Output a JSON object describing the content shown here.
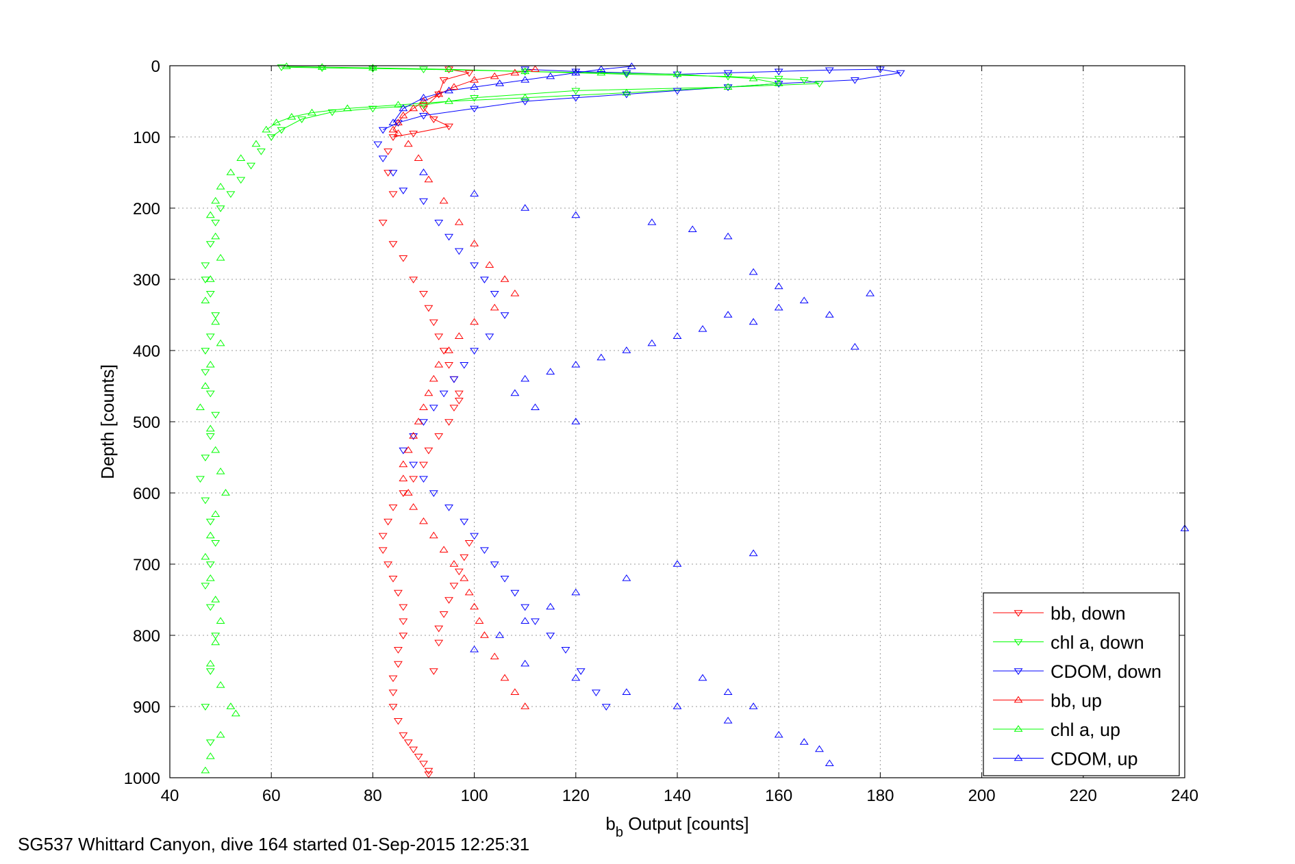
{
  "caption": "SG537 Whittard Canyon, dive 164 started 01-Sep-2015 12:25:31",
  "chart_data": {
    "type": "scatter",
    "xlabel_main": "b",
    "xlabel_sub": "b",
    "xlabel_rest": " Output [counts]",
    "ylabel": "Depth [counts]",
    "xlim": [
      40,
      240
    ],
    "ylim": [
      0,
      1000
    ],
    "y_reversed": true,
    "grid": true,
    "legend_position": "bottom-right",
    "xticks": [
      "40",
      "60",
      "80",
      "100",
      "120",
      "140",
      "160",
      "180",
      "200",
      "220",
      "240"
    ],
    "yticks": [
      "0",
      "100",
      "200",
      "300",
      "400",
      "500",
      "600",
      "700",
      "800",
      "900",
      "1000"
    ],
    "series": [
      {
        "name": "bb, down",
        "color": "#ff0000",
        "marker": "down",
        "x": [
          95,
          99,
          94,
          93,
          90,
          92,
          95,
          88,
          84,
          83,
          83,
          84,
          82,
          84,
          86,
          88,
          90,
          91,
          92,
          93,
          94,
          95,
          96,
          97,
          97,
          96,
          95,
          93,
          91,
          90,
          88,
          86,
          84,
          83,
          82,
          82,
          83,
          84,
          85,
          86,
          86,
          86,
          85,
          85,
          84,
          84,
          84,
          85,
          86,
          87,
          88,
          89,
          90,
          91,
          91,
          92,
          93,
          93,
          94,
          95,
          96,
          97,
          98,
          99
        ],
        "y": [
          5,
          10,
          20,
          40,
          60,
          75,
          85,
          95,
          100,
          120,
          150,
          180,
          220,
          250,
          270,
          300,
          320,
          340,
          360,
          380,
          400,
          420,
          440,
          460,
          470,
          480,
          500,
          520,
          540,
          560,
          580,
          600,
          620,
          640,
          660,
          680,
          700,
          720,
          740,
          760,
          780,
          800,
          820,
          840,
          860,
          880,
          900,
          920,
          940,
          950,
          960,
          970,
          980,
          990,
          995,
          850,
          810,
          790,
          770,
          750,
          730,
          710,
          690,
          670
        ]
      },
      {
        "name": "chl a, down",
        "color": "#00ff00",
        "marker": "down",
        "x": [
          62,
          70,
          80,
          90,
          110,
          130,
          150,
          160,
          165,
          168,
          150,
          120,
          100,
          90,
          80,
          72,
          66,
          62,
          60,
          58,
          56,
          54,
          52,
          50,
          49,
          48,
          47,
          47,
          48,
          49,
          48,
          47,
          47,
          48,
          49,
          48,
          47,
          46,
          47,
          48,
          49,
          48,
          47,
          48,
          49,
          48,
          47,
          48
        ],
        "y": [
          2,
          3,
          4,
          5,
          8,
          12,
          15,
          18,
          20,
          25,
          30,
          35,
          45,
          55,
          60,
          65,
          75,
          90,
          100,
          120,
          140,
          160,
          180,
          200,
          220,
          250,
          280,
          300,
          320,
          350,
          380,
          400,
          430,
          460,
          490,
          520,
          550,
          580,
          610,
          640,
          670,
          700,
          730,
          760,
          800,
          850,
          900,
          950
        ]
      },
      {
        "name": "CDOM, down",
        "color": "#0000ff",
        "marker": "down",
        "x": [
          110,
          120,
          130,
          140,
          150,
          160,
          170,
          180,
          184,
          175,
          160,
          150,
          140,
          130,
          120,
          110,
          100,
          90,
          85,
          82,
          81,
          82,
          84,
          86,
          90,
          93,
          95,
          97,
          100,
          102,
          104,
          106,
          103,
          100,
          98,
          96,
          94,
          92,
          90,
          88,
          86,
          88,
          90,
          92,
          95,
          98,
          100,
          102,
          104,
          106,
          108,
          110,
          112,
          115,
          118,
          121,
          124,
          126
        ],
        "y": [
          5,
          8,
          10,
          12,
          10,
          8,
          6,
          5,
          10,
          20,
          25,
          30,
          35,
          40,
          45,
          50,
          60,
          70,
          80,
          90,
          110,
          130,
          150,
          175,
          190,
          220,
          240,
          260,
          280,
          300,
          320,
          350,
          380,
          400,
          420,
          440,
          460,
          480,
          500,
          520,
          540,
          560,
          580,
          600,
          620,
          640,
          660,
          680,
          700,
          720,
          740,
          760,
          780,
          800,
          820,
          850,
          880,
          900
        ]
      },
      {
        "name": "bb, up",
        "color": "#ff0000",
        "marker": "up",
        "x": [
          112,
          108,
          104,
          100,
          96,
          93,
          90,
          88,
          86,
          85,
          84,
          85,
          87,
          89,
          91,
          94,
          97,
          100,
          103,
          106,
          108,
          104,
          100,
          97,
          95,
          93,
          92,
          91,
          90,
          89,
          88,
          87,
          86,
          86,
          87,
          88,
          90,
          92,
          94,
          96,
          98,
          99,
          100,
          101,
          102,
          104,
          106,
          108,
          110
        ],
        "y": [
          5,
          10,
          15,
          20,
          30,
          40,
          50,
          60,
          70,
          80,
          90,
          95,
          110,
          130,
          160,
          190,
          220,
          250,
          280,
          300,
          320,
          340,
          360,
          380,
          400,
          420,
          440,
          460,
          480,
          500,
          520,
          540,
          560,
          580,
          600,
          620,
          640,
          660,
          680,
          700,
          720,
          740,
          760,
          780,
          800,
          830,
          860,
          880,
          900
        ]
      },
      {
        "name": "chl a, up",
        "color": "#00ff00",
        "marker": "up",
        "x": [
          63,
          70,
          80,
          95,
          110,
          125,
          140,
          155,
          160,
          150,
          130,
          110,
          95,
          85,
          75,
          68,
          64,
          61,
          59,
          57,
          54,
          52,
          50,
          49,
          48,
          49,
          50,
          48,
          47,
          49,
          50,
          48,
          47,
          46,
          48,
          49,
          50,
          51,
          49,
          48,
          47,
          48,
          49,
          50,
          49,
          48,
          50,
          52,
          53,
          50,
          48,
          47
        ],
        "y": [
          1,
          2,
          3,
          5,
          8,
          10,
          12,
          18,
          25,
          30,
          38,
          45,
          50,
          55,
          60,
          66,
          72,
          80,
          90,
          110,
          130,
          150,
          170,
          190,
          210,
          240,
          270,
          300,
          330,
          360,
          390,
          420,
          450,
          480,
          510,
          540,
          570,
          600,
          630,
          660,
          690,
          720,
          750,
          780,
          810,
          840,
          870,
          900,
          910,
          940,
          970,
          990
        ]
      },
      {
        "name": "CDOM, up",
        "color": "#0000ff",
        "marker": "up",
        "x": [
          131,
          125,
          120,
          115,
          110,
          105,
          100,
          95,
          90,
          86,
          84,
          90,
          100,
          110,
          120,
          135,
          143,
          150,
          155,
          160,
          178,
          175,
          170,
          165,
          160,
          155,
          150,
          145,
          140,
          135,
          130,
          125,
          120,
          115,
          110,
          108,
          112,
          120,
          240,
          155,
          140,
          130,
          120,
          115,
          110,
          105,
          100,
          110,
          120,
          130,
          140,
          150,
          160,
          165,
          168,
          170,
          145,
          150,
          155
        ],
        "y": [
          1,
          5,
          10,
          15,
          20,
          25,
          30,
          35,
          45,
          60,
          80,
          150,
          180,
          200,
          210,
          220,
          230,
          240,
          290,
          310,
          320,
          395,
          350,
          330,
          340,
          360,
          350,
          370,
          380,
          390,
          400,
          410,
          420,
          430,
          440,
          460,
          480,
          500,
          650,
          685,
          700,
          720,
          740,
          760,
          780,
          800,
          820,
          840,
          860,
          880,
          900,
          920,
          940,
          950,
          960,
          980,
          860,
          880,
          900
        ]
      }
    ]
  },
  "legend": {
    "items": [
      {
        "label": "bb, down",
        "color": "#ff0000",
        "marker": "down"
      },
      {
        "label": "chl a, down",
        "color": "#00ff00",
        "marker": "down"
      },
      {
        "label": "CDOM, down",
        "color": "#0000ff",
        "marker": "down"
      },
      {
        "label": "bb, up",
        "color": "#ff0000",
        "marker": "up"
      },
      {
        "label": "chl a, up",
        "color": "#00ff00",
        "marker": "up"
      },
      {
        "label": "CDOM, up",
        "color": "#0000ff",
        "marker": "up"
      }
    ]
  }
}
